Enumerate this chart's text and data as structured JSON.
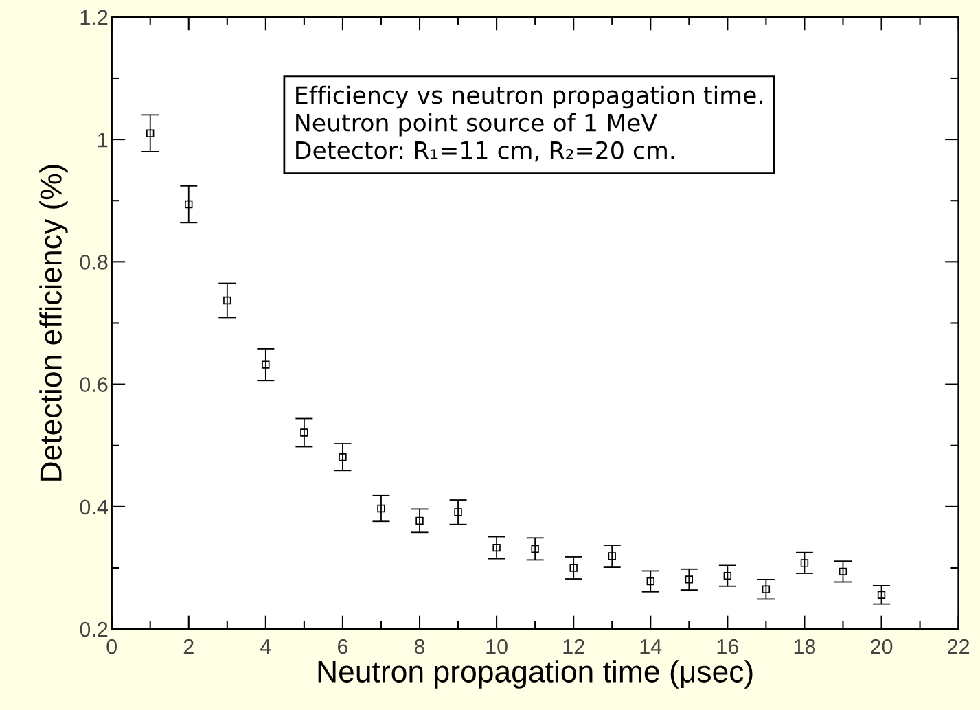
{
  "chart_data": {
    "type": "scatter",
    "xlabel": "Neutron propagation time (μsec)",
    "ylabel": "Detection efficiency (%)",
    "x": [
      1,
      2,
      3,
      4,
      5,
      6,
      7,
      8,
      9,
      10,
      11,
      12,
      13,
      14,
      15,
      16,
      17,
      18,
      19,
      20
    ],
    "series": [
      {
        "color": "#000000",
        "marker": "square",
        "values": [
          1.01,
          0.894,
          0.737,
          0.632,
          0.521,
          0.481,
          0.397,
          0.377,
          0.391,
          0.333,
          0.331,
          0.3,
          0.319,
          0.278,
          0.281,
          0.287,
          0.265,
          0.308,
          0.294,
          0.256
        ],
        "errors": [
          0.03,
          0.03,
          0.028,
          0.026,
          0.023,
          0.022,
          0.021,
          0.019,
          0.02,
          0.018,
          0.018,
          0.018,
          0.018,
          0.017,
          0.017,
          0.017,
          0.016,
          0.017,
          0.017,
          0.015
        ]
      }
    ],
    "xlim": [
      0,
      22
    ],
    "xticks": [
      0,
      {
        "value": 1,
        "label": null
      },
      2,
      {
        "value": 3,
        "label": null
      },
      4,
      {
        "value": 5,
        "label": null
      },
      6,
      {
        "value": 7,
        "label": null
      },
      8,
      {
        "value": 9,
        "label": null
      },
      10,
      {
        "value": 11,
        "label": null
      },
      12,
      {
        "value": 13,
        "label": null
      },
      14,
      {
        "value": 15,
        "label": null
      },
      16,
      {
        "value": 17,
        "label": null
      },
      18,
      {
        "value": 19,
        "label": null
      },
      20,
      {
        "value": 21,
        "label": null
      },
      22
    ],
    "ylim": [
      0.2,
      1.2
    ],
    "yticks": [
      0.2,
      {
        "value": 0.3,
        "label": null
      },
      0.4,
      {
        "value": 0.5,
        "label": null
      },
      0.6,
      {
        "value": 0.7,
        "label": null
      },
      0.8,
      {
        "value": 0.9,
        "label": null
      },
      1,
      {
        "value": 1.1,
        "label": null
      },
      1.2
    ],
    "grid": false,
    "legend": false,
    "annotations": [
      "Efficiency vs neutron propagation time.\nNeutron point source of 1 MeV\nDetector: R₁=11 cm, R₂=20 cm."
    ]
  }
}
